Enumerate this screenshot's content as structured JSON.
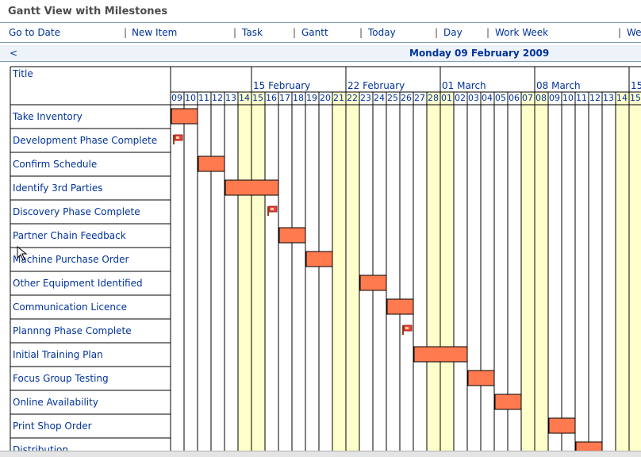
{
  "page_title": "Gantt View with Milestones",
  "toolbar": {
    "go_to_date": "Go to Date",
    "new_item": "New Item",
    "task": "Task",
    "gantt": "Gantt",
    "today": "Today",
    "day": "Day",
    "work_week": "Work Week",
    "week": "We",
    "separator": "|"
  },
  "date_nav": {
    "prev": "<",
    "current": "Monday 09 February 2009"
  },
  "grid": {
    "title_header": "Title",
    "weeks": [
      "15 February",
      "22 February",
      "01 March",
      "08 March",
      "15"
    ],
    "days": [
      "09",
      "10",
      "11",
      "12",
      "13",
      "14",
      "15",
      "16",
      "17",
      "18",
      "19",
      "20",
      "21",
      "22",
      "23",
      "24",
      "25",
      "26",
      "27",
      "28",
      "01",
      "02",
      "03",
      "04",
      "05",
      "06",
      "07",
      "08",
      "09",
      "10",
      "11",
      "12",
      "13",
      "14",
      "15"
    ],
    "weekend_color": "#ffffcc",
    "bar_color": "#ff7a4f",
    "grid_line_color": "#000000"
  },
  "tasks": [
    {
      "title": "Take Inventory",
      "type": "task",
      "start": 0,
      "days": 2
    },
    {
      "title": "Development Phase Complete",
      "type": "milestone",
      "start": 0
    },
    {
      "title": "Confirm Schedule",
      "type": "task",
      "start": 2,
      "days": 2
    },
    {
      "title": "Identify 3rd Parties",
      "type": "task",
      "start": 4,
      "days": 4
    },
    {
      "title": "Discovery Phase Complete",
      "type": "milestone",
      "start": 7
    },
    {
      "title": "Partner Chain Feedback",
      "type": "task",
      "start": 8,
      "days": 2
    },
    {
      "title": "Machine Purchase Order",
      "type": "task",
      "start": 10,
      "days": 2
    },
    {
      "title": "Other Equipment Identified",
      "type": "task",
      "start": 14,
      "days": 2
    },
    {
      "title": "Communication Licence",
      "type": "task",
      "start": 16,
      "days": 2
    },
    {
      "title": "Plannng Phase Complete",
      "type": "milestone",
      "start": 17
    },
    {
      "title": "Initial Training Plan",
      "type": "task",
      "start": 18,
      "days": 4
    },
    {
      "title": "Focus Group Testing",
      "type": "task",
      "start": 22,
      "days": 2
    },
    {
      "title": "Online Availability",
      "type": "task",
      "start": 24,
      "days": 2
    },
    {
      "title": "Print Shop Order",
      "type": "task",
      "start": 28,
      "days": 2
    },
    {
      "title": "Distribution",
      "type": "task",
      "start": 30,
      "days": 2
    }
  ]
}
